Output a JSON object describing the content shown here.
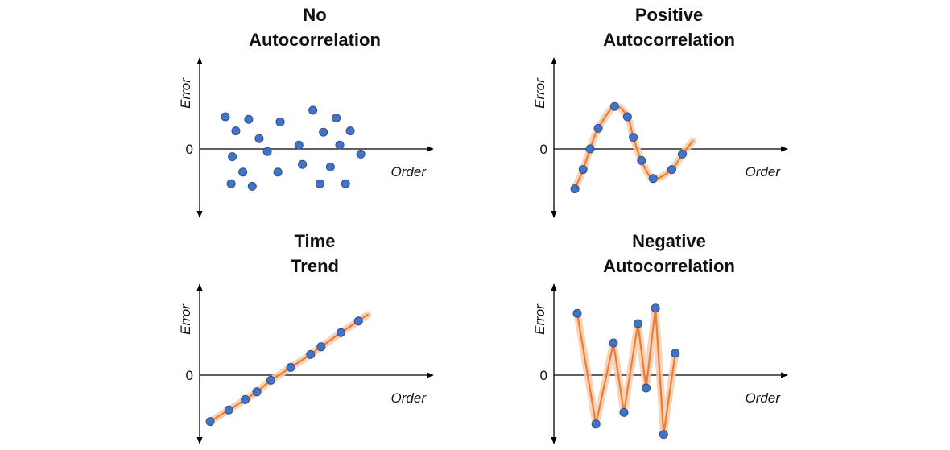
{
  "colors": {
    "point_fill": "#4472c4",
    "point_stroke": "#2f528f",
    "curve": "#ed7d31",
    "curve_glow": "#f8cbad",
    "axis": "#000000"
  },
  "chart_data": [
    {
      "type": "scatter",
      "title_lines": [
        "No",
        "Autocorrelation"
      ],
      "xlabel": "Order",
      "ylabel": "Error",
      "origin_label": "0",
      "connect": "none",
      "xlim": [
        0,
        10
      ],
      "ylim": [
        -3,
        3
      ],
      "points": [
        [
          1.1,
          1.25
        ],
        [
          1.55,
          0.7
        ],
        [
          2.1,
          1.15
        ],
        [
          2.55,
          0.4
        ],
        [
          2.9,
          -0.1
        ],
        [
          3.45,
          1.05
        ],
        [
          3.45,
          1.05
        ],
        [
          4.25,
          0.15
        ],
        [
          4.85,
          1.5
        ],
        [
          5.3,
          0.65
        ],
        [
          5.85,
          1.2
        ],
        [
          6.0,
          0.15
        ],
        [
          6.45,
          0.7
        ],
        [
          1.4,
          -0.3
        ],
        [
          1.85,
          -0.9
        ],
        [
          2.25,
          -1.45
        ],
        [
          1.35,
          -1.35
        ],
        [
          3.35,
          -0.9
        ],
        [
          4.4,
          -0.6
        ],
        [
          5.15,
          -1.35
        ],
        [
          5.6,
          -0.7
        ],
        [
          6.25,
          -1.35
        ],
        [
          6.9,
          -0.2
        ]
      ]
    },
    {
      "type": "line",
      "title_lines": [
        "Positive",
        "Autocorrelation"
      ],
      "xlabel": "Order",
      "ylabel": "Error",
      "origin_label": "0",
      "connect": "smooth",
      "xlim": [
        0,
        10
      ],
      "ylim": [
        -3,
        3
      ],
      "points": [
        [
          0.9,
          -1.55
        ],
        [
          1.25,
          -0.8
        ],
        [
          1.55,
          0.0
        ],
        [
          1.9,
          0.8
        ],
        [
          2.6,
          1.65
        ],
        [
          3.15,
          1.25
        ],
        [
          3.4,
          0.45
        ],
        [
          3.75,
          -0.45
        ],
        [
          4.25,
          -1.15
        ],
        [
          5.05,
          -0.8
        ],
        [
          5.5,
          -0.2
        ]
      ],
      "curve_end": [
        5.95,
        0.3
      ]
    },
    {
      "type": "line",
      "title_lines": [
        "Time",
        "Trend"
      ],
      "xlabel": "Order",
      "ylabel": "Error",
      "origin_label": "0",
      "connect": "straight",
      "xlim": [
        0,
        10
      ],
      "ylim": [
        -3,
        3
      ],
      "points": [
        [
          0.45,
          -1.8
        ],
        [
          1.25,
          -1.35
        ],
        [
          1.95,
          -0.95
        ],
        [
          2.45,
          -0.65
        ],
        [
          3.05,
          -0.2
        ],
        [
          3.9,
          0.3
        ],
        [
          4.75,
          0.8
        ],
        [
          5.2,
          1.1
        ],
        [
          6.05,
          1.65
        ],
        [
          6.8,
          2.1
        ]
      ],
      "curve_start": [
        0.45,
        -1.8
      ],
      "curve_end": [
        7.2,
        2.35
      ]
    },
    {
      "type": "line",
      "title_lines": [
        "Negative",
        "Autocorrelation"
      ],
      "xlabel": "Order",
      "ylabel": "Error",
      "origin_label": "0",
      "connect": "straight",
      "xlim": [
        0,
        10
      ],
      "ylim": [
        -3,
        3
      ],
      "points": [
        [
          1.0,
          2.4
        ],
        [
          1.8,
          -1.9
        ],
        [
          2.55,
          1.25
        ],
        [
          3.0,
          -1.45
        ],
        [
          3.6,
          2.0
        ],
        [
          3.95,
          -0.5
        ],
        [
          4.35,
          2.6
        ],
        [
          4.7,
          -2.3
        ],
        [
          5.2,
          0.85
        ]
      ]
    }
  ]
}
